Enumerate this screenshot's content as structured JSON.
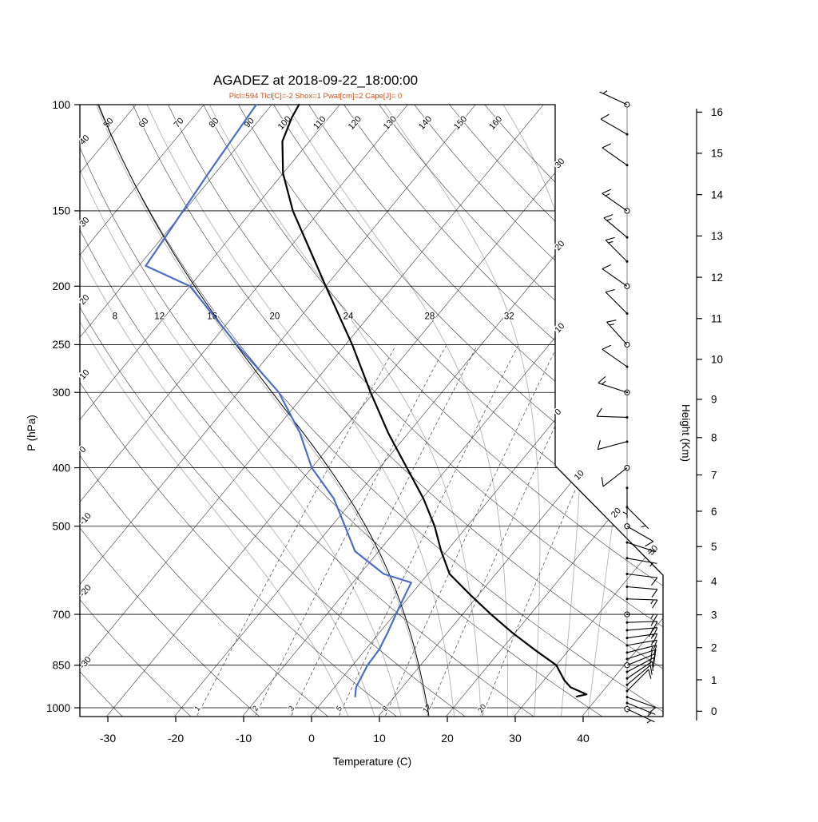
{
  "chart_data": {
    "type": "skewt_log_p_sounding",
    "title": "AGADEZ at 2018-09-22_18:00:00",
    "station": "AGADEZ",
    "datetime": "2018-09-22_18:00:00",
    "subtitle": "Plcl=594 Tlcl[C]=-2 Shox=1 Pwat[cm]=2 Cape[J]= 0",
    "params": {
      "Plcl": 594,
      "Tlcl_C": -2,
      "Shox": 1,
      "Pwat_cm": 2,
      "Cape_J": 0
    },
    "axes": {
      "pressure": {
        "label": "P (hPa)",
        "ticks": [
          100,
          150,
          200,
          250,
          300,
          400,
          500,
          700,
          850,
          1000
        ],
        "range": [
          100,
          1033
        ]
      },
      "temperature": {
        "label": "Temperature (C)",
        "ticks": [
          -30,
          -20,
          -10,
          0,
          10,
          20,
          30,
          40
        ]
      },
      "height": {
        "label": "Height (Km)",
        "ticks_km": [
          0,
          1,
          2,
          3,
          4,
          5,
          6,
          7,
          8,
          9,
          10,
          11,
          12,
          13,
          14,
          15,
          16
        ],
        "std_pressures": [
          1013.25,
          898.8,
          795.0,
          701.2,
          616.6,
          540.5,
          472.2,
          411.1,
          356.5,
          308.0,
          264.4,
          226.3,
          193.3,
          165.1,
          141.0,
          120.4,
          102.9
        ]
      }
    },
    "grid": {
      "isotherms": {
        "min": -120,
        "max": 40,
        "step": 10,
        "right_edge_labels": [
          0,
          -10,
          -20,
          -30
        ],
        "cut_labels": [
          10,
          20,
          30
        ]
      },
      "dry_adiabats": {
        "min": -30,
        "max": 160,
        "step": 10
      },
      "moist_adiabats": {
        "values": [
          4,
          8,
          12,
          16,
          20,
          24,
          28,
          32,
          36,
          40
        ],
        "labeled": [
          8,
          12,
          16,
          20,
          24,
          28,
          32
        ],
        "label_pressure": 225
      },
      "mixing_ratio": {
        "values": [
          1,
          2,
          3,
          5,
          8,
          12,
          20
        ],
        "label_pressure": 1014
      }
    },
    "series": [
      {
        "name": "temperature",
        "color": "#000000",
        "width": 2.2,
        "points": [
          [
            958,
            36.8
          ],
          [
            950,
            38
          ],
          [
            925,
            34.8
          ],
          [
            900,
            33
          ],
          [
            850,
            30
          ],
          [
            800,
            24.8
          ],
          [
            750,
            19.5
          ],
          [
            700,
            14.2
          ],
          [
            650,
            8.8
          ],
          [
            600,
            3.2
          ],
          [
            550,
            -0.8
          ],
          [
            500,
            -4.8
          ],
          [
            450,
            -9.8
          ],
          [
            400,
            -16
          ],
          [
            350,
            -23
          ],
          [
            300,
            -30.5
          ],
          [
            250,
            -39
          ],
          [
            200,
            -50
          ],
          [
            175,
            -56.5
          ],
          [
            150,
            -64
          ],
          [
            130,
            -70
          ],
          [
            115,
            -74
          ],
          [
            105,
            -75.5
          ],
          [
            100,
            -76
          ]
        ]
      },
      {
        "name": "dewpoint",
        "color": "#4a6fc9",
        "width": 2.2,
        "points": [
          [
            958,
            4.2
          ],
          [
            925,
            3.2
          ],
          [
            850,
            2.2
          ],
          [
            800,
            2.0
          ],
          [
            750,
            1.2
          ],
          [
            700,
            0.2
          ],
          [
            650,
            -0.8
          ],
          [
            620,
            -1.4
          ],
          [
            600,
            -6.5
          ],
          [
            550,
            -13.5
          ],
          [
            500,
            -18
          ],
          [
            450,
            -23
          ],
          [
            400,
            -30
          ],
          [
            350,
            -36
          ],
          [
            300,
            -44
          ],
          [
            250,
            -56
          ],
          [
            200,
            -70
          ],
          [
            185,
            -79
          ],
          [
            160,
            -79.8
          ],
          [
            130,
            -81
          ],
          [
            100,
            -82.3
          ]
        ]
      },
      {
        "name": "parcel",
        "color": "#000000",
        "width": 1,
        "type": "moist_adiabat",
        "thetaw": 16.2
      }
    ],
    "wind_barbs": [
      {
        "p": 100,
        "dir": 295,
        "kt": 5,
        "marker": "circle"
      },
      {
        "p": 112,
        "dir": 300,
        "kt": 8,
        "marker": "dot"
      },
      {
        "p": 126,
        "dir": 305,
        "kt": 10,
        "marker": "dot"
      },
      {
        "p": 150,
        "dir": 305,
        "kt": 13,
        "marker": "circle"
      },
      {
        "p": 166,
        "dir": 310,
        "kt": 15,
        "marker": "dot"
      },
      {
        "p": 182,
        "dir": 315,
        "kt": 13,
        "marker": "dot"
      },
      {
        "p": 200,
        "dir": 305,
        "kt": 8,
        "marker": "circle"
      },
      {
        "p": 222,
        "dir": 315,
        "kt": 10,
        "marker": "dot"
      },
      {
        "p": 250,
        "dir": 318,
        "kt": 13,
        "marker": "circle"
      },
      {
        "p": 272,
        "dir": 305,
        "kt": 10,
        "marker": "dot"
      },
      {
        "p": 300,
        "dir": 288,
        "kt": 15,
        "marker": "circledot"
      },
      {
        "p": 330,
        "dir": 272,
        "kt": 10,
        "marker": "dot"
      },
      {
        "p": 362,
        "dir": 255,
        "kt": 8,
        "marker": "dot"
      },
      {
        "p": 400,
        "dir": 232,
        "kt": 8,
        "marker": "circle"
      },
      {
        "p": 432,
        "dir": 180,
        "kt": 5,
        "marker": "dot"
      },
      {
        "p": 465,
        "dir": 135,
        "kt": 5,
        "marker": "dot"
      },
      {
        "p": 500,
        "dir": 120,
        "kt": 8,
        "marker": "circle"
      },
      {
        "p": 532,
        "dir": 108,
        "kt": 5,
        "marker": "dot"
      },
      {
        "p": 565,
        "dir": 100,
        "kt": 5,
        "marker": "dot"
      },
      {
        "p": 600,
        "dir": 97,
        "kt": 8,
        "marker": "dot"
      },
      {
        "p": 630,
        "dir": 95,
        "kt": 10,
        "marker": "dot"
      },
      {
        "p": 660,
        "dir": 92,
        "kt": 13,
        "marker": "dot"
      },
      {
        "p": 700,
        "dir": 90,
        "kt": 15,
        "marker": "circledot"
      },
      {
        "p": 722,
        "dir": 88,
        "kt": 15,
        "marker": "dot"
      },
      {
        "p": 744,
        "dir": 85,
        "kt": 18,
        "marker": "dot"
      },
      {
        "p": 766,
        "dir": 82,
        "kt": 15,
        "marker": "dot"
      },
      {
        "p": 788,
        "dir": 80,
        "kt": 15,
        "marker": "dot"
      },
      {
        "p": 810,
        "dir": 76,
        "kt": 15,
        "marker": "dot"
      },
      {
        "p": 830,
        "dir": 72,
        "kt": 13,
        "marker": "dot"
      },
      {
        "p": 850,
        "dir": 68,
        "kt": 15,
        "marker": "circle"
      },
      {
        "p": 872,
        "dir": 62,
        "kt": 13,
        "marker": "dot"
      },
      {
        "p": 894,
        "dir": 56,
        "kt": 10,
        "marker": "dot"
      },
      {
        "p": 916,
        "dir": 50,
        "kt": 10,
        "marker": "dot"
      },
      {
        "p": 938,
        "dir": 45,
        "kt": 10,
        "marker": "dot"
      },
      {
        "p": 960,
        "dir": 110,
        "kt": 8,
        "marker": "dot"
      },
      {
        "p": 982,
        "dir": 112,
        "kt": 6,
        "marker": "dot"
      },
      {
        "p": 1005,
        "dir": 115,
        "kt": 5,
        "marker": "circle"
      }
    ],
    "colors": {
      "temperature": "#000000",
      "dewpoint": "#4a6fc9",
      "subtitle": "#c4531a",
      "moist_adiabat": "#b3b3b3",
      "grid": "#2a2a2a"
    }
  }
}
